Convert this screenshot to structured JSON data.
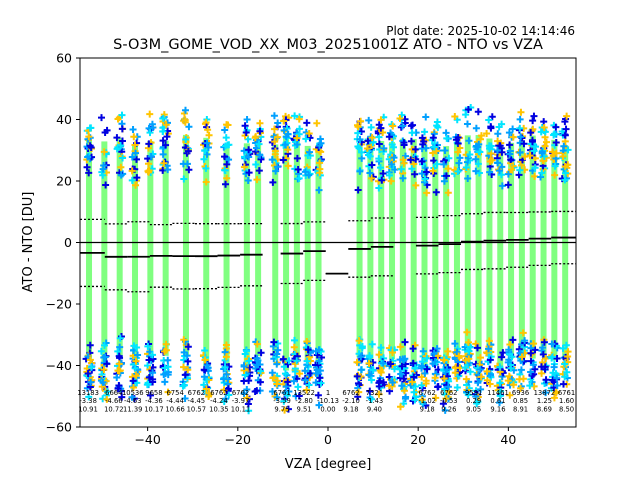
{
  "chart_data": {
    "type": "scatter",
    "title": "S-O3M_GOME_VOD_XX_M03_20251001Z ATO - NTO vs VZA",
    "subtitle": "Plot date: 2025-10-02 14:14:46",
    "xlabel": "VZA [degree]",
    "ylabel": "ATO - NTO [DU]",
    "xlim": [
      -55,
      55
    ],
    "ylim": [
      -60,
      60
    ],
    "xticks": [
      "−40",
      "−20",
      "0",
      "20",
      "40"
    ],
    "xtick_values": [
      -40,
      -20,
      0,
      20,
      40
    ],
    "yticks": [
      "−60",
      "−40",
      "−20",
      "0",
      "20",
      "40",
      "60"
    ],
    "ytick_values": [
      -60,
      -40,
      -20,
      0,
      20,
      40,
      60
    ],
    "grid": false,
    "point_colors": [
      "#80ff80",
      "#00e5ff",
      "#ffc400",
      "#0000e0",
      "#00a0ff"
    ],
    "colors": {
      "mean_line": "#000000",
      "std_line": "#000000",
      "zero_line": "#000000"
    },
    "columns": [
      -53,
      -49.6,
      -46.2,
      -42.8,
      -39.4,
      -36,
      -31.5,
      -27,
      -22.5,
      -18,
      -15.5,
      -11.7,
      -9.3,
      -6.9,
      -4.5,
      -2.1,
      7,
      9.4,
      11.8,
      14.2,
      16.6,
      19,
      21.4,
      23.8,
      26.2,
      28.6,
      31,
      33.4,
      35.8,
      38.2,
      40.6,
      43,
      45.4,
      47.8,
      50.2,
      52.6
    ],
    "bins": [
      {
        "x": [
          -55,
          -49.5
        ],
        "mean": -3.38,
        "std": 10.91
      },
      {
        "x": [
          -49.5,
          -44.5
        ],
        "mean": -4.66,
        "std": 10.72
      },
      {
        "x": [
          -44.5,
          -39.5
        ],
        "mean": -4.63,
        "std": 11.39
      },
      {
        "x": [
          -39.5,
          -34.5
        ],
        "mean": -4.36,
        "std": 10.17
      },
      {
        "x": [
          -34.5,
          -29.5
        ],
        "mean": -4.44,
        "std": 10.66
      },
      {
        "x": [
          -29.5,
          -24.5
        ],
        "mean": -4.45,
        "std": 10.57
      },
      {
        "x": [
          -24.5,
          -19.5
        ],
        "mean": -4.24,
        "std": 10.35
      },
      {
        "x": [
          -19.5,
          -14.5
        ],
        "mean": -3.97,
        "std": 10.11
      },
      {
        "x": [
          -10.5,
          -5.5
        ],
        "mean": -3.59,
        "std": 9.75
      },
      {
        "x": [
          -5.5,
          -0.5
        ],
        "mean": -2.8,
        "std": 9.51
      },
      {
        "x": [
          -0.5,
          4.5
        ],
        "mean": -10.13,
        "std": 0.0
      },
      {
        "x": [
          4.5,
          9.5
        ],
        "mean": -2.1,
        "std": 9.18
      },
      {
        "x": [
          9.5,
          14.5
        ],
        "mean": -1.43,
        "std": 9.4
      },
      {
        "x": [
          19.5,
          24.5
        ],
        "mean": -1.02,
        "std": 9.18
      },
      {
        "x": [
          24.5,
          29.5
        ],
        "mean": -0.53,
        "std": 9.26
      },
      {
        "x": [
          29.5,
          34.5
        ],
        "mean": 0.29,
        "std": 9.05
      },
      {
        "x": [
          34.5,
          39.5
        ],
        "mean": 0.61,
        "std": 9.16
      },
      {
        "x": [
          39.5,
          44.5
        ],
        "mean": 0.85,
        "std": 8.91
      },
      {
        "x": [
          44.5,
          49.5
        ],
        "mean": 1.25,
        "std": 8.69
      },
      {
        "x": [
          49.5,
          55
        ],
        "mean": 1.6,
        "std": 8.5
      }
    ],
    "annotations": [
      {
        "x": -53.2,
        "lines": [
          "13183",
          "-3.38",
          "10.91"
        ]
      },
      {
        "x": -47.5,
        "lines": [
          "6664",
          "-4.66",
          "10.72"
        ]
      },
      {
        "x": -43.3,
        "lines": [
          "10536",
          "-4.63",
          "11.39"
        ]
      },
      {
        "x": -38.6,
        "lines": [
          "9658",
          "-4.36",
          "10.17"
        ]
      },
      {
        "x": -33.9,
        "lines": [
          "6754",
          "-4.44",
          "10.66"
        ]
      },
      {
        "x": -29.2,
        "lines": [
          "6762",
          "-4.45",
          "10.57"
        ]
      },
      {
        "x": -24.2,
        "lines": [
          "6762",
          "-4.24",
          "10.35"
        ]
      },
      {
        "x": -19.4,
        "lines": [
          "6762",
          "-3.97",
          "10.11"
        ]
      },
      {
        "x": -10.2,
        "lines": [
          "6761",
          "-3.59",
          "9.75"
        ]
      },
      {
        "x": -5.3,
        "lines": [
          "13522",
          "-2.80",
          "9.51"
        ]
      },
      {
        "x": 0.0,
        "lines": [
          "1",
          "-10.13",
          "0.00"
        ]
      },
      {
        "x": 5.1,
        "lines": [
          "6762",
          "-2.10",
          "9.18"
        ]
      },
      {
        "x": 10.3,
        "lines": [
          "7321",
          "-1.43",
          "9.40"
        ]
      },
      {
        "x": 22.0,
        "lines": [
          "6762",
          "-1.02",
          "9.18"
        ]
      },
      {
        "x": 26.8,
        "lines": [
          "6762",
          "-0.53",
          "9.26"
        ]
      },
      {
        "x": 32.3,
        "lines": [
          "9591",
          "0.29",
          "9.05"
        ]
      },
      {
        "x": 37.7,
        "lines": [
          "11461",
          "0.61",
          "9.16"
        ]
      },
      {
        "x": 42.7,
        "lines": [
          "6936",
          "0.85",
          "8.91"
        ]
      },
      {
        "x": 48.0,
        "lines": [
          "13872",
          "1.25",
          "8.69"
        ]
      },
      {
        "x": 52.9,
        "lines": [
          "6761",
          "1.60",
          "8.50"
        ]
      }
    ]
  }
}
